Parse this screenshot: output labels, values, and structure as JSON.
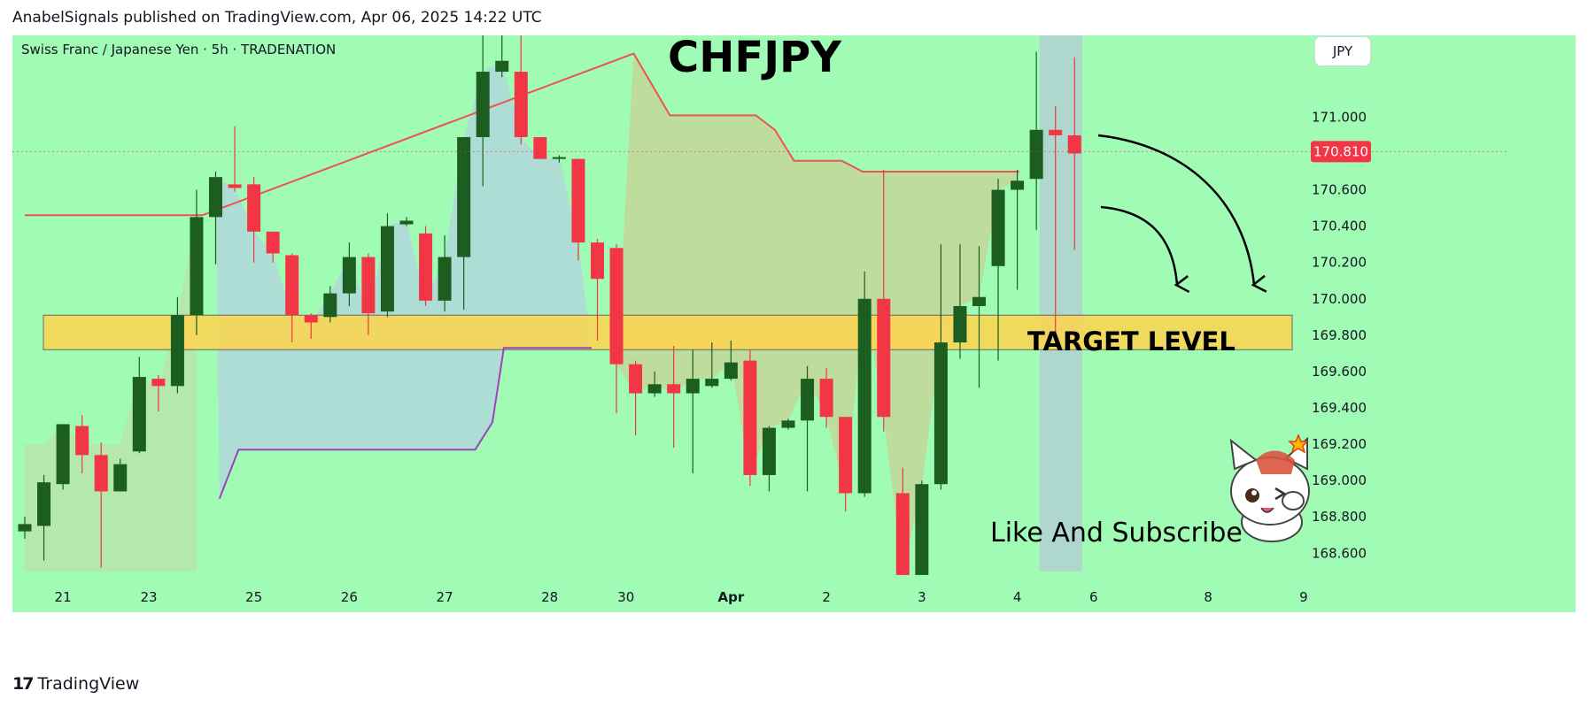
{
  "header": {
    "published_line": "AnabelSignals published on TradingView.com, Apr 06, 2025 14:22 UTC"
  },
  "footer": {
    "logo_mark": "17",
    "brand": "TradingView"
  },
  "colors": {
    "background": "#a0fbb4",
    "bull": "#1b5e20",
    "bear": "#f23645",
    "target_zone": "#ffd54f",
    "resistance_line": "#ef5350",
    "support_line": "#9c44c0",
    "price_label_bg": "#f23645"
  },
  "chart_data": {
    "type": "candlestick",
    "title": "CHFJPY",
    "symbol_line": "Swiss Franc  / Japanese Yen · 5h · TRADENATION",
    "currency_button": "JPY",
    "last_price": "170.810",
    "y_ticks": [
      "171.000",
      "170.800",
      "170.600",
      "170.400",
      "170.200",
      "170.000",
      "169.800",
      "169.600",
      "169.400",
      "169.200",
      "169.000",
      "168.800",
      "168.600"
    ],
    "y_tick_values": [
      171.0,
      170.8,
      170.6,
      170.4,
      170.2,
      170.0,
      169.8,
      169.6,
      169.4,
      169.2,
      169.0,
      168.8,
      168.6
    ],
    "ylim": [
      168.46,
      171.45
    ],
    "x_ticks": [
      {
        "label": "21",
        "index": 2
      },
      {
        "label": "23",
        "index": 6.5
      },
      {
        "label": "25",
        "index": 12
      },
      {
        "label": "26",
        "index": 17
      },
      {
        "label": "27",
        "index": 22
      },
      {
        "label": "28",
        "index": 27.5
      },
      {
        "label": "30",
        "index": 31.5
      },
      {
        "label": "Apr",
        "index": 37
      },
      {
        "label": "2",
        "index": 42
      },
      {
        "label": "3",
        "index": 47
      },
      {
        "label": "4",
        "index": 52
      },
      {
        "label": "6",
        "index": 56
      },
      {
        "label": "8",
        "index": 62
      },
      {
        "label": "9",
        "index": 67
      }
    ],
    "candles": [
      {
        "o": 168.72,
        "c": 168.76,
        "h": 168.8,
        "l": 168.68
      },
      {
        "o": 168.75,
        "c": 168.99,
        "h": 169.03,
        "l": 168.56
      },
      {
        "o": 168.98,
        "c": 169.31,
        "h": 169.31,
        "l": 168.95
      },
      {
        "o": 169.3,
        "c": 169.14,
        "h": 169.36,
        "l": 169.04
      },
      {
        "o": 169.14,
        "c": 168.94,
        "h": 169.21,
        "l": 168.52
      },
      {
        "o": 168.94,
        "c": 169.09,
        "h": 169.12,
        "l": 168.94
      },
      {
        "o": 169.16,
        "c": 169.57,
        "h": 169.68,
        "l": 169.15
      },
      {
        "o": 169.56,
        "c": 169.52,
        "h": 169.58,
        "l": 169.38
      },
      {
        "o": 169.52,
        "c": 169.91,
        "h": 170.01,
        "l": 169.48
      },
      {
        "o": 169.91,
        "c": 170.45,
        "h": 170.6,
        "l": 169.8
      },
      {
        "o": 170.45,
        "c": 170.67,
        "h": 170.7,
        "l": 170.19
      },
      {
        "o": 170.63,
        "c": 170.61,
        "h": 170.95,
        "l": 170.59
      },
      {
        "o": 170.63,
        "c": 170.37,
        "h": 170.67,
        "l": 170.2
      },
      {
        "o": 170.37,
        "c": 170.25,
        "h": 170.37,
        "l": 170.2
      },
      {
        "o": 170.24,
        "c": 169.91,
        "h": 170.25,
        "l": 169.76
      },
      {
        "o": 169.91,
        "c": 169.87,
        "h": 169.92,
        "l": 169.78
      },
      {
        "o": 169.9,
        "c": 170.03,
        "h": 170.07,
        "l": 169.87
      },
      {
        "o": 170.03,
        "c": 170.23,
        "h": 170.31,
        "l": 169.96
      },
      {
        "o": 170.23,
        "c": 169.92,
        "h": 170.25,
        "l": 169.8
      },
      {
        "o": 169.93,
        "c": 170.4,
        "h": 170.47,
        "l": 169.9
      },
      {
        "o": 170.41,
        "c": 170.43,
        "h": 170.45,
        "l": 170.4
      },
      {
        "o": 170.36,
        "c": 169.99,
        "h": 170.4,
        "l": 169.96
      },
      {
        "o": 169.99,
        "c": 170.23,
        "h": 170.35,
        "l": 169.93
      },
      {
        "o": 170.23,
        "c": 170.89,
        "h": 170.89,
        "l": 169.94
      },
      {
        "o": 170.89,
        "c": 171.25,
        "h": 171.45,
        "l": 170.62
      },
      {
        "o": 171.25,
        "c": 171.31,
        "h": 171.45,
        "l": 171.22
      },
      {
        "o": 171.25,
        "c": 170.89,
        "h": 171.45,
        "l": 170.85
      },
      {
        "o": 170.89,
        "c": 170.77,
        "h": 170.89,
        "l": 170.77
      },
      {
        "o": 170.77,
        "c": 170.78,
        "h": 170.79,
        "l": 170.75
      },
      {
        "o": 170.77,
        "c": 170.31,
        "h": 170.77,
        "l": 170.21
      },
      {
        "o": 170.31,
        "c": 170.11,
        "h": 170.33,
        "l": 169.77
      },
      {
        "o": 170.28,
        "c": 169.64,
        "h": 170.3,
        "l": 169.37
      },
      {
        "o": 169.64,
        "c": 169.48,
        "h": 169.66,
        "l": 169.25
      },
      {
        "o": 169.48,
        "c": 169.53,
        "h": 169.6,
        "l": 169.46
      },
      {
        "o": 169.53,
        "c": 169.48,
        "h": 169.74,
        "l": 169.18
      },
      {
        "o": 169.48,
        "c": 169.56,
        "h": 169.72,
        "l": 169.04
      },
      {
        "o": 169.52,
        "c": 169.56,
        "h": 169.76,
        "l": 169.51
      },
      {
        "o": 169.56,
        "c": 169.65,
        "h": 169.77,
        "l": 169.55
      },
      {
        "o": 169.66,
        "c": 169.03,
        "h": 169.72,
        "l": 168.97
      },
      {
        "o": 169.03,
        "c": 169.29,
        "h": 169.3,
        "l": 168.94
      },
      {
        "o": 169.29,
        "c": 169.33,
        "h": 169.34,
        "l": 169.28
      },
      {
        "o": 169.33,
        "c": 169.56,
        "h": 169.63,
        "l": 168.94
      },
      {
        "o": 169.56,
        "c": 169.35,
        "h": 169.62,
        "l": 169.29
      },
      {
        "o": 169.35,
        "c": 168.93,
        "h": 169.35,
        "l": 168.83
      },
      {
        "o": 168.93,
        "c": 170.0,
        "h": 170.15,
        "l": 168.91
      },
      {
        "o": 170.0,
        "c": 169.35,
        "h": 170.71,
        "l": 169.27
      },
      {
        "o": 168.93,
        "c": 168.48,
        "h": 169.07,
        "l": 168.48
      },
      {
        "o": 168.48,
        "c": 168.98,
        "h": 169.0,
        "l": 168.48
      },
      {
        "o": 168.98,
        "c": 169.76,
        "h": 170.3,
        "l": 168.95
      },
      {
        "o": 169.76,
        "c": 169.96,
        "h": 170.3,
        "l": 169.67
      },
      {
        "o": 169.96,
        "c": 170.01,
        "h": 170.29,
        "l": 169.51
      },
      {
        "o": 170.18,
        "c": 170.6,
        "h": 170.66,
        "l": 169.66
      },
      {
        "o": 170.6,
        "c": 170.65,
        "h": 170.71,
        "l": 170.05
      },
      {
        "o": 170.66,
        "c": 170.93,
        "h": 171.36,
        "l": 170.38
      },
      {
        "o": 170.93,
        "c": 170.9,
        "h": 171.06,
        "l": 169.77
      },
      {
        "o": 170.9,
        "c": 170.8,
        "h": 171.33,
        "l": 170.27
      }
    ],
    "target_zone": {
      "low": 169.72,
      "high": 169.91,
      "label": "TARGET LEVEL"
    },
    "resistance_line": [
      [
        0,
        170.46
      ],
      [
        9.3,
        170.46
      ],
      [
        31.9,
        171.35
      ],
      [
        33.8,
        171.01
      ],
      [
        38.3,
        171.01
      ],
      [
        39.3,
        170.93
      ],
      [
        40.3,
        170.76
      ],
      [
        42.8,
        170.76
      ],
      [
        43.9,
        170.7
      ],
      [
        52.1,
        170.7
      ]
    ],
    "support_line": [
      [
        10.2,
        168.9
      ],
      [
        11.2,
        169.17
      ],
      [
        23.6,
        169.17
      ],
      [
        24.5,
        169.32
      ],
      [
        25.1,
        169.73
      ],
      [
        29.7,
        169.73
      ]
    ],
    "annotation": "Like And Subscribe"
  }
}
